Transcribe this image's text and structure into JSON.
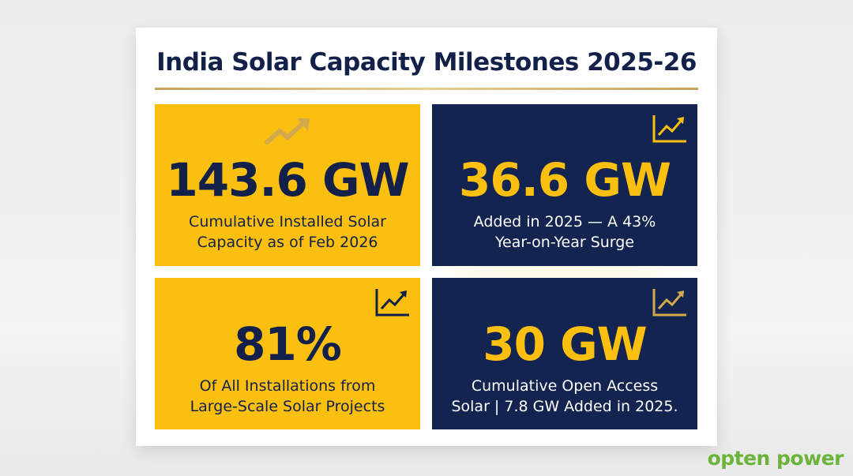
{
  "title": "India Solar Capacity Milestones 2025-26",
  "tiles": [
    {
      "value": "143.6 GW",
      "line1": "Cumulative Installed Solar",
      "line2": "Capacity as of Feb 2026",
      "icon": "trending-up-arrow-icon"
    },
    {
      "value": "36.6 GW",
      "line1": "Added in 2025 — A 43%",
      "line2": "Year-on-Year Surge",
      "icon": "line-chart-icon"
    },
    {
      "value": "81%",
      "line1": "Of All Installations from",
      "line2": "Large-Scale Solar Projects",
      "icon": "line-chart-icon"
    },
    {
      "value": "30 GW",
      "line1": "Cumulative Open Access",
      "line2": "Solar | 7.8 GW Added in 2025.",
      "icon": "line-chart-icon"
    }
  ],
  "logo": "opten power",
  "colors": {
    "navy": "#12244f",
    "gold": "#fbbf10",
    "logo_green": "#6bb33a"
  }
}
